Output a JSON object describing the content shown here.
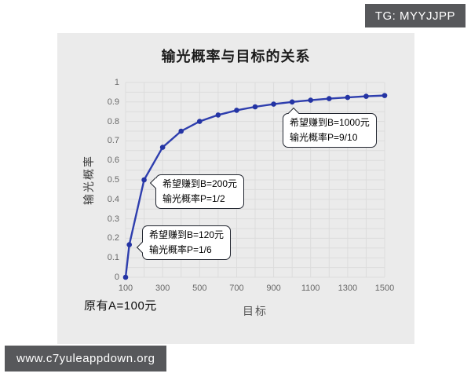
{
  "watermarks": {
    "tg_badge": "TG: MYYJJPP",
    "site_badge": "www.c7yuleappdown.org"
  },
  "chart_data": {
    "type": "line",
    "title": "输光概率与目标的关系",
    "xlabel": "目标",
    "ylabel": "输光概率",
    "origin_note": "原有A=100元",
    "xlim": [
      100,
      1500
    ],
    "ylim": [
      0,
      1
    ],
    "grid": "on",
    "x_grid_step": 100,
    "y_grid_step": 0.05,
    "x_tick_labels": [
      "100",
      "300",
      "500",
      "700",
      "900",
      "1100",
      "1300",
      "1500"
    ],
    "x_tick_values": [
      100,
      300,
      500,
      700,
      900,
      1100,
      1300,
      1500
    ],
    "y_tick_labels": [
      "0",
      "0.1",
      "0.2",
      "0.3",
      "0.4",
      "0.5",
      "0.6",
      "0.7",
      "0.8",
      "0.9",
      "1"
    ],
    "y_tick_values": [
      0,
      0.1,
      0.2,
      0.3,
      0.4,
      0.5,
      0.6,
      0.7,
      0.8,
      0.9,
      1
    ],
    "series": [
      {
        "name": "输光概率",
        "x": [
          100,
          120,
          200,
          300,
          400,
          500,
          600,
          700,
          800,
          900,
          1000,
          1100,
          1200,
          1300,
          1400,
          1500
        ],
        "y": [
          0,
          0.167,
          0.5,
          0.667,
          0.75,
          0.8,
          0.833,
          0.857,
          0.875,
          0.889,
          0.9,
          0.909,
          0.917,
          0.923,
          0.929,
          0.933
        ]
      }
    ],
    "colors": {
      "line": "#2e3eae",
      "marker": "#2434a4",
      "grid": "#dcdcdc",
      "panel_bg": "#ebebeb"
    },
    "annotations": [
      {
        "line1": "希望赚到B=200元",
        "line2": "输光概率P=1/2",
        "target_x": 200,
        "target_y": 0.5
      },
      {
        "line1": "希望赚到B=120元",
        "line2": "输光概率P=1/6",
        "target_x": 120,
        "target_y": 0.167
      },
      {
        "line1": "希望赚到B=1000元",
        "line2": "输光概率P=9/10",
        "target_x": 1000,
        "target_y": 0.9
      }
    ]
  }
}
